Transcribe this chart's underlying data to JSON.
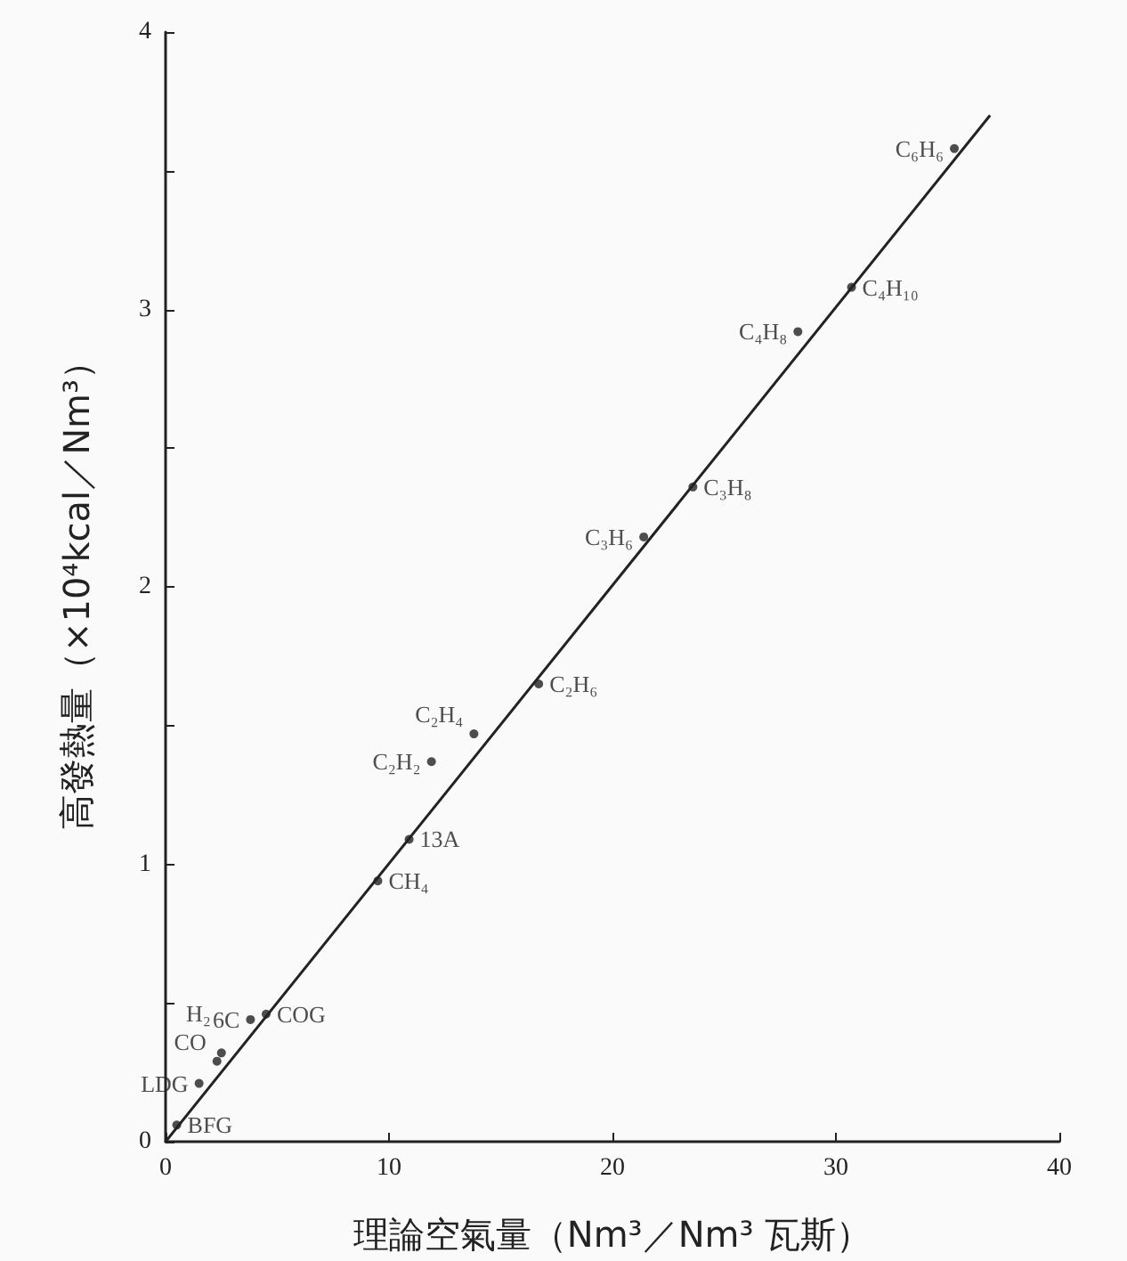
{
  "chart_data": {
    "type": "scatter",
    "xlabel": "理論空氣量（Nm³／Nm³ 瓦斯）",
    "ylabel": "高發熱量（×10⁴kcal／Nm³）",
    "x": [
      0.5,
      1.5,
      2.3,
      2.5,
      3.8,
      4.5,
      9.5,
      10.9,
      11.9,
      13.8,
      16.7,
      21.4,
      23.6,
      28.3,
      30.7,
      35.3
    ],
    "series": [
      {
        "color": "#222222",
        "values": [
          0.06,
          0.21,
          0.29,
          0.32,
          0.44,
          0.46,
          0.94,
          1.09,
          1.37,
          1.47,
          1.65,
          2.18,
          2.36,
          2.92,
          3.08,
          3.58
        ]
      },
      {
        "type": "line",
        "color": "#222222",
        "marker": "none",
        "x": [
          0,
          36.9
        ],
        "values": [
          0,
          3.7
        ]
      }
    ],
    "annotations": [
      {
        "text": "BFG",
        "x": 0.5,
        "y": 0.06
      },
      {
        "text": "LDG",
        "x": 1.5,
        "y": 0.21
      },
      {
        "text": "CO",
        "x": 2.3,
        "y": 0.29
      },
      {
        "text": "H₂",
        "x": 2.5,
        "y": 0.32
      },
      {
        "text": "6C",
        "x": 3.8,
        "y": 0.44
      },
      {
        "text": "COG",
        "x": 4.5,
        "y": 0.46
      },
      {
        "text": "CH₄",
        "x": 9.5,
        "y": 0.94
      },
      {
        "text": "13A",
        "x": 10.9,
        "y": 1.09
      },
      {
        "text": "C₂H₂",
        "x": 11.9,
        "y": 1.37
      },
      {
        "text": "C₂H₄",
        "x": 13.8,
        "y": 1.47
      },
      {
        "text": "C₂H₆",
        "x": 16.7,
        "y": 1.65
      },
      {
        "text": "C₃H₆",
        "x": 21.4,
        "y": 2.18
      },
      {
        "text": "C₃H₈",
        "x": 23.6,
        "y": 2.36
      },
      {
        "text": "C₄H₈",
        "x": 28.3,
        "y": 2.92
      },
      {
        "text": "C₄H₁₀",
        "x": 30.7,
        "y": 3.08
      },
      {
        "text": "C₆H₆",
        "x": 35.3,
        "y": 3.58
      }
    ],
    "xlim": [
      0,
      40
    ],
    "xticks": [
      0,
      10,
      20,
      30,
      40
    ],
    "ylim": [
      0,
      4
    ],
    "yticks": [
      0,
      {
        "value": 0.5,
        "label": null
      },
      1,
      {
        "value": 1.5,
        "label": null
      },
      2,
      {
        "value": 2.5,
        "label": null
      },
      3,
      {
        "value": 3.5,
        "label": null
      },
      4
    ],
    "marker": "circle",
    "grid": false
  }
}
